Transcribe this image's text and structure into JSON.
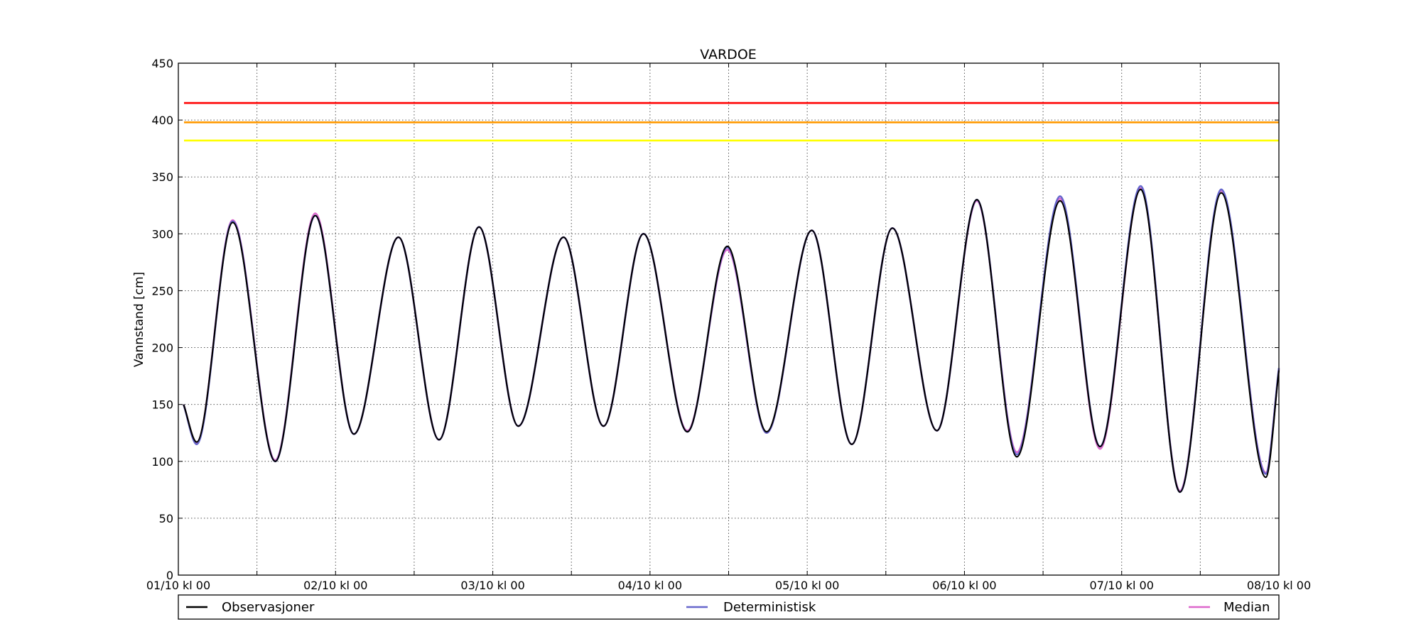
{
  "chart_data": {
    "type": "line",
    "title": "VARDOE",
    "ylabel": "Vannstand [cm]",
    "xlabel": "",
    "ylim": [
      0,
      450
    ],
    "yticks": [
      0,
      50,
      100,
      150,
      200,
      250,
      300,
      350,
      400,
      450
    ],
    "x_unit": "hours since 01/10 kl 00",
    "xlim": [
      0,
      168
    ],
    "xticks": [
      0,
      24,
      48,
      72,
      96,
      120,
      144,
      168
    ],
    "xtick_labels": [
      "01/10 kl 00",
      "02/10 kl 00",
      "03/10 kl 00",
      "04/10 kl 00",
      "05/10 kl 00",
      "06/10 kl 00",
      "07/10 kl 00",
      "08/10 kl 00"
    ],
    "grid": true,
    "legend_position": "below",
    "thresholds": [
      {
        "value": 415,
        "color": "#ff0000"
      },
      {
        "value": 398,
        "color": "#ff9900"
      },
      {
        "value": 382,
        "color": "#ffff00"
      }
    ],
    "x": [
      0.8,
      2.8,
      8.3,
      14.8,
      20.9,
      26.8,
      33.6,
      39.8,
      45.9,
      51.9,
      58.8,
      64.9,
      71.0,
      77.7,
      83.8,
      89.8,
      96.7,
      102.8,
      109.0,
      115.8,
      121.9,
      128.0,
      134.6,
      140.7,
      146.9,
      152.9,
      159.2,
      166.0,
      168.0
    ],
    "series": [
      {
        "name": "Observasjoner",
        "color": "#000000",
        "values": [
          150,
          117,
          310,
          100,
          316,
          124,
          297,
          119,
          306,
          131,
          297,
          131,
          300,
          126,
          289,
          126,
          303,
          115,
          305,
          127,
          330,
          104,
          329,
          113,
          339,
          73,
          336,
          86,
          180
        ]
      },
      {
        "name": "Deterministisk",
        "color": "#6666cc",
        "values": [
          150,
          115,
          311,
          100,
          316,
          124,
          297,
          119,
          306,
          131,
          297,
          131,
          300,
          126,
          288,
          125,
          303,
          115,
          305,
          127,
          330,
          106,
          333,
          113,
          342,
          73,
          339,
          89,
          182
        ]
      },
      {
        "name": "Median",
        "color": "#dd66cc",
        "values": [
          150,
          116,
          312,
          101,
          318,
          124,
          297,
          119,
          306,
          131,
          297,
          131,
          300,
          127,
          286,
          125,
          303,
          115,
          305,
          127,
          329,
          108,
          331,
          111,
          340,
          74,
          338,
          90,
          181
        ]
      }
    ]
  }
}
